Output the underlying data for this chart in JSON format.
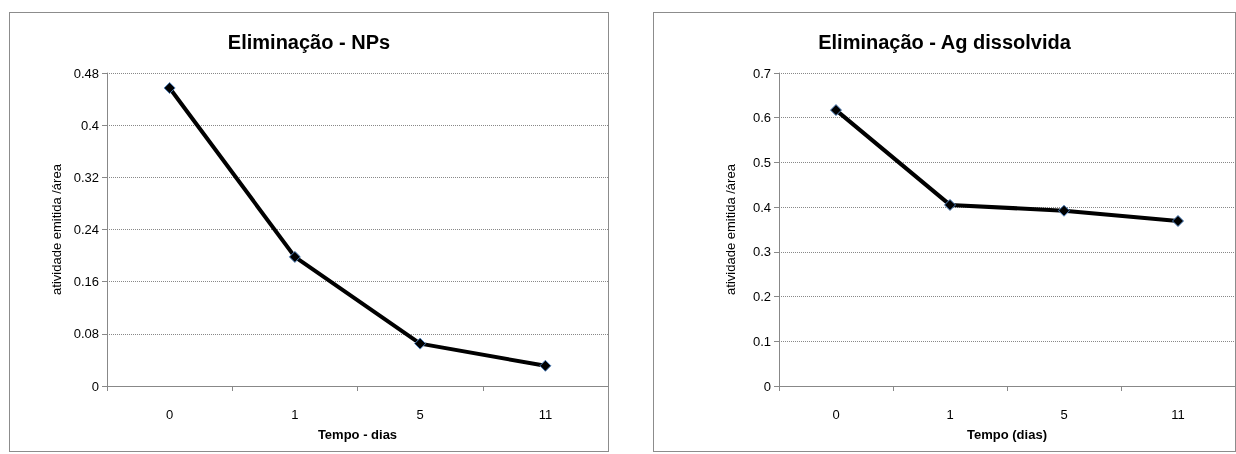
{
  "chart_data": [
    {
      "type": "line",
      "title": "Eliminação - NPs",
      "xlabel": "Tempo - dias",
      "ylabel": "atividade emitida /área",
      "categories": [
        "0",
        "1",
        "5",
        "11"
      ],
      "series": [
        {
          "color": "#000000",
          "values": [
            0.457,
            0.198,
            0.065,
            0.031
          ]
        }
      ],
      "ylim": [
        0,
        0.48
      ],
      "yticks": [
        0,
        0.08,
        0.16,
        0.24,
        0.32,
        0.4,
        0.48
      ],
      "grid": "y",
      "marker": "diamond",
      "line_style": "solid"
    },
    {
      "type": "line",
      "title": "Eliminação - Ag dissolvida",
      "xlabel": "Tempo (dias)",
      "ylabel": "atividade emitida /área",
      "categories": [
        "0",
        "1",
        "5",
        "11"
      ],
      "series": [
        {
          "color": "#000000",
          "values": [
            0.617,
            0.405,
            0.392,
            0.369
          ]
        }
      ],
      "ylim": [
        0,
        0.7
      ],
      "yticks": [
        0,
        0.1,
        0.2,
        0.3,
        0.4,
        0.5,
        0.6,
        0.7
      ],
      "grid": "y",
      "marker": "diamond",
      "line_style": "solid"
    }
  ]
}
